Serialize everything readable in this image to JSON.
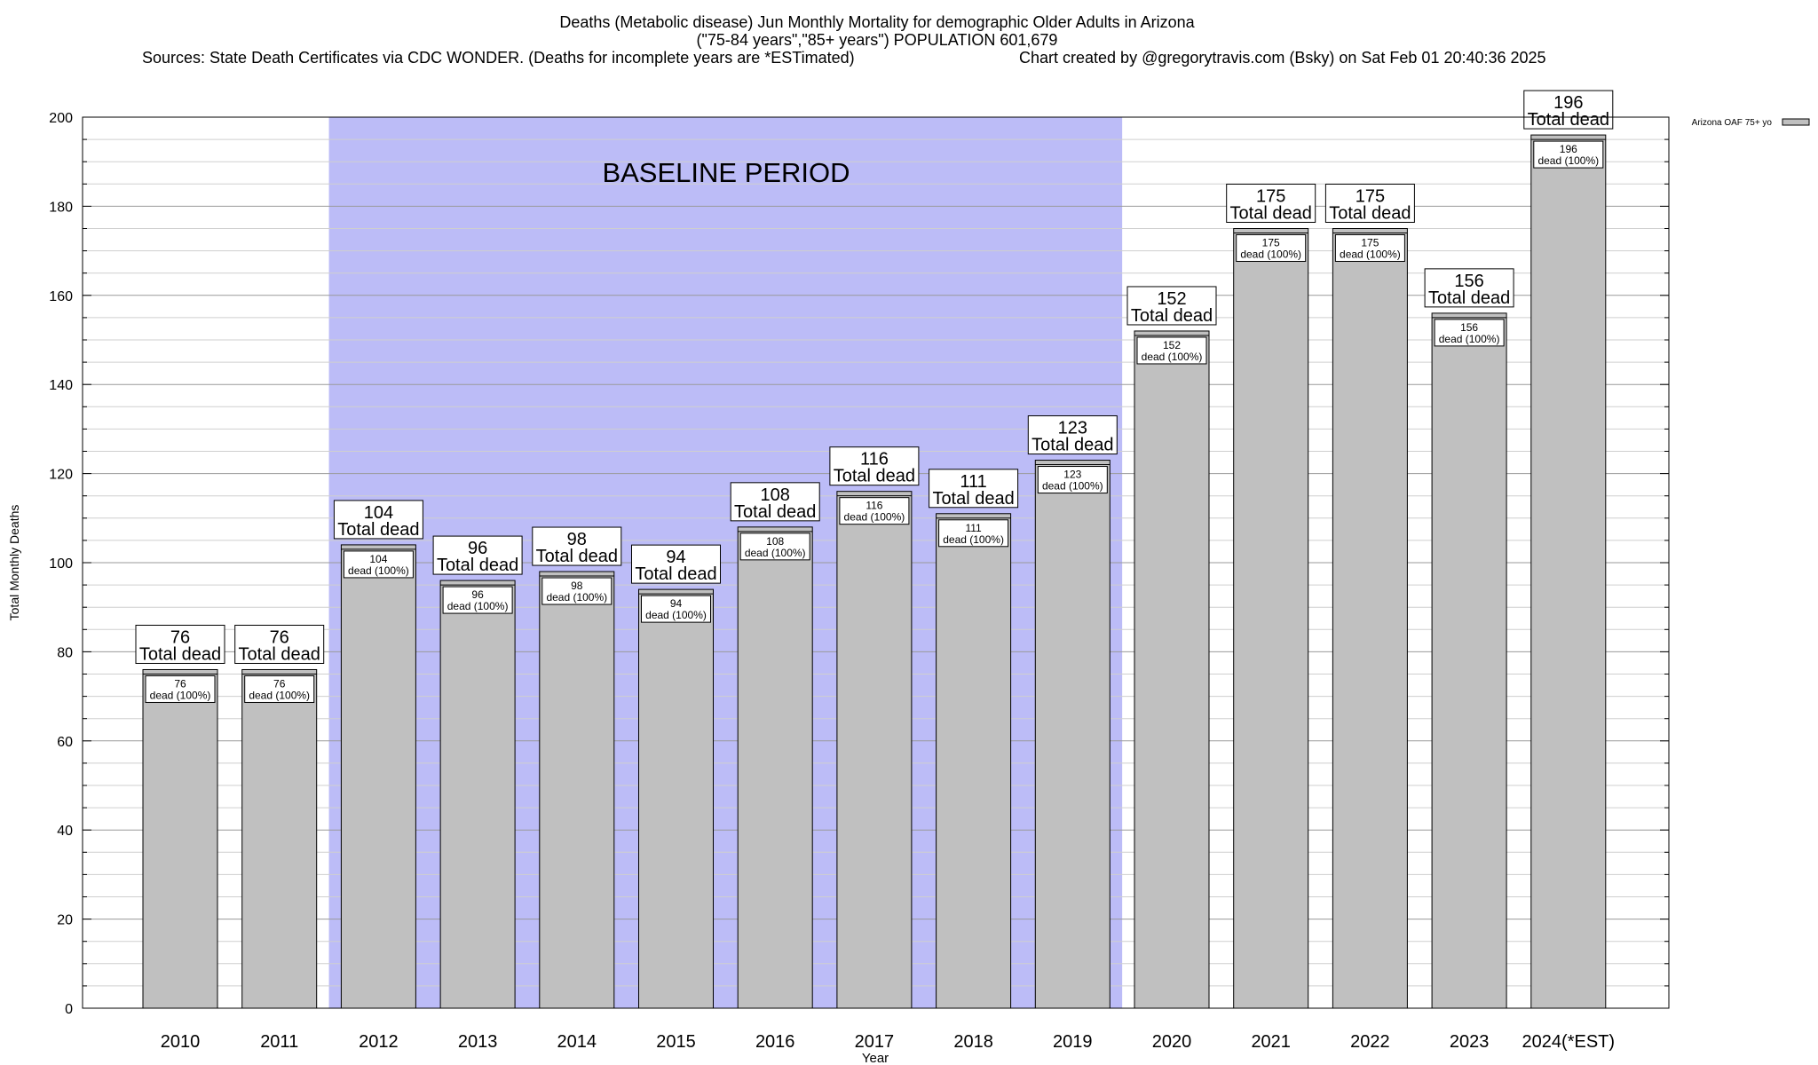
{
  "header": {
    "title_line1": "Deaths (Metabolic disease) Jun Monthly Mortality for demographic Older Adults in Arizona",
    "title_line2": "(\"75-84 years\",\"85+ years\") POPULATION 601,679",
    "sources": "Sources: State Death Certificates via CDC WONDER. (Deaths for incomplete years are *ESTimated)",
    "credit": "Chart created by @gregorytravis.com (Bsky) on Sat Feb 01 20:40:36 2025"
  },
  "chart_data": {
    "type": "bar",
    "xlabel": "Year",
    "ylabel": "Total Monthly Deaths",
    "ylim": [
      0,
      200
    ],
    "y_ticks": [
      0,
      20,
      40,
      60,
      80,
      100,
      120,
      140,
      160,
      180,
      200
    ],
    "grid": true,
    "legend": {
      "placement": "top-right",
      "label": "Arizona OAF 75+ yo"
    },
    "categories": [
      "2010",
      "2011",
      "2012",
      "2013",
      "2014",
      "2015",
      "2016",
      "2017",
      "2018",
      "2019",
      "2020",
      "2021",
      "2022",
      "2023",
      "2024(*EST)"
    ],
    "values": [
      76,
      76,
      104,
      96,
      98,
      94,
      108,
      116,
      111,
      123,
      152,
      175,
      175,
      156,
      196
    ],
    "total_label": "Total dead",
    "inner_label": "dead (100%)",
    "baseline": {
      "label": "BASELINE PERIOD",
      "start": "2012",
      "end": "2019",
      "color": "#bcbcf7"
    },
    "bar_color": "#c0c0c0"
  }
}
